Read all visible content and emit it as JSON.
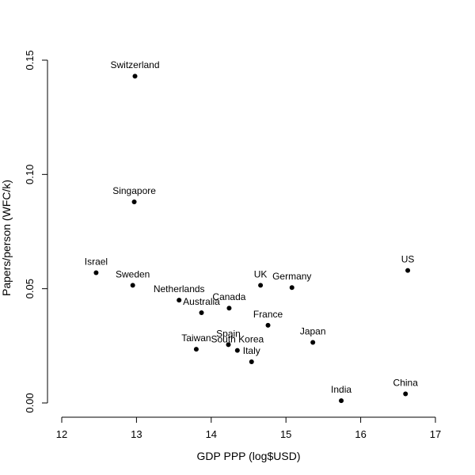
{
  "chart_data": {
    "type": "scatter",
    "title": "",
    "xlabel": "GDP PPP (log$USD)",
    "ylabel": "Papers/person (WFC/k)",
    "xlim": [
      12,
      17
    ],
    "ylim": [
      0,
      0.15
    ],
    "xticks": [
      12,
      13,
      14,
      15,
      16,
      17
    ],
    "xtick_labels": [
      "12",
      "13",
      "14",
      "15",
      "16",
      "17"
    ],
    "yticks": [
      0.0,
      0.05,
      0.1,
      0.15
    ],
    "ytick_labels": [
      "0.00",
      "0.05",
      "0.10",
      "0.15"
    ],
    "grid": false,
    "points": [
      {
        "label": "Switzerland",
        "x": 12.98,
        "y": 0.143
      },
      {
        "label": "Singapore",
        "x": 12.97,
        "y": 0.088
      },
      {
        "label": "Israel",
        "x": 12.46,
        "y": 0.057
      },
      {
        "label": "Sweden",
        "x": 12.95,
        "y": 0.0515
      },
      {
        "label": "Netherlands",
        "x": 13.57,
        "y": 0.045
      },
      {
        "label": "Australia",
        "x": 13.87,
        "y": 0.0395
      },
      {
        "label": "Canada",
        "x": 14.24,
        "y": 0.0415
      },
      {
        "label": "UK",
        "x": 14.66,
        "y": 0.0515
      },
      {
        "label": "Germany",
        "x": 15.08,
        "y": 0.0505
      },
      {
        "label": "France",
        "x": 14.76,
        "y": 0.034
      },
      {
        "label": "US",
        "x": 16.63,
        "y": 0.058
      },
      {
        "label": "Japan",
        "x": 15.36,
        "y": 0.0265
      },
      {
        "label": "Spain",
        "x": 14.23,
        "y": 0.0255
      },
      {
        "label": "South Korea",
        "x": 14.35,
        "y": 0.023
      },
      {
        "label": "Taiwan",
        "x": 13.8,
        "y": 0.0235
      },
      {
        "label": "Italy",
        "x": 14.54,
        "y": 0.018
      },
      {
        "label": "India",
        "x": 15.74,
        "y": 0.001
      },
      {
        "label": "China",
        "x": 16.6,
        "y": 0.004
      }
    ]
  }
}
